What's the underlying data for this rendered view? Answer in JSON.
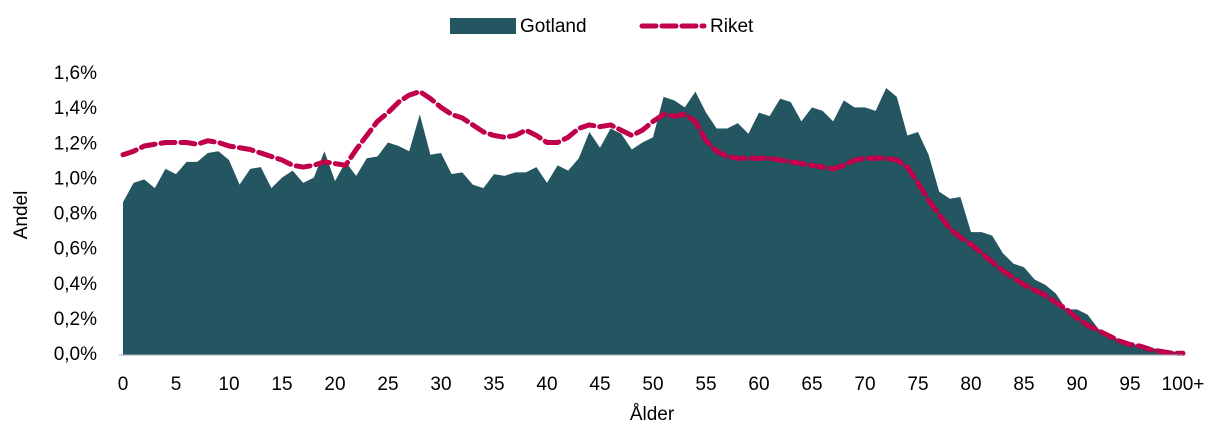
{
  "chart_data": {
    "type": "area_line",
    "x_label": "Ålder",
    "y_label": "Andel",
    "categories": [
      "0",
      null,
      null,
      null,
      null,
      "5",
      null,
      null,
      null,
      null,
      "10",
      null,
      null,
      null,
      null,
      "15",
      null,
      null,
      null,
      null,
      "20",
      null,
      null,
      null,
      null,
      "25",
      null,
      null,
      null,
      null,
      "30",
      null,
      null,
      null,
      null,
      "35",
      null,
      null,
      null,
      null,
      "40",
      null,
      null,
      null,
      null,
      "45",
      null,
      null,
      null,
      null,
      "50",
      null,
      null,
      null,
      null,
      "55",
      null,
      null,
      null,
      null,
      "60",
      null,
      null,
      null,
      null,
      "65",
      null,
      null,
      null,
      null,
      "70",
      null,
      null,
      null,
      null,
      "75",
      null,
      null,
      null,
      null,
      "80",
      null,
      null,
      null,
      null,
      "85",
      null,
      null,
      null,
      null,
      "90",
      null,
      null,
      null,
      null,
      "95",
      null,
      null,
      null,
      null,
      "100+"
    ],
    "series": [
      {
        "name": "Gotland",
        "color": "#235660",
        "style": "area",
        "values": [
          0.87,
          0.98,
          1.0,
          0.95,
          1.06,
          1.03,
          1.1,
          1.1,
          1.15,
          1.16,
          1.11,
          0.97,
          1.06,
          1.07,
          0.95,
          1.01,
          1.05,
          0.98,
          1.01,
          1.16,
          0.99,
          1.1,
          1.02,
          1.12,
          1.13,
          1.21,
          1.19,
          1.16,
          1.37,
          1.14,
          1.15,
          1.03,
          1.04,
          0.97,
          0.95,
          1.03,
          1.02,
          1.04,
          1.04,
          1.07,
          0.98,
          1.08,
          1.05,
          1.12,
          1.27,
          1.18,
          1.29,
          1.26,
          1.17,
          1.21,
          1.24,
          1.47,
          1.45,
          1.41,
          1.5,
          1.38,
          1.29,
          1.29,
          1.32,
          1.26,
          1.38,
          1.36,
          1.46,
          1.44,
          1.33,
          1.41,
          1.39,
          1.33,
          1.45,
          1.41,
          1.41,
          1.39,
          1.52,
          1.47,
          1.25,
          1.27,
          1.14,
          0.93,
          0.89,
          0.9,
          0.7,
          0.7,
          0.68,
          0.58,
          0.52,
          0.5,
          0.43,
          0.4,
          0.35,
          0.26,
          0.26,
          0.23,
          0.15,
          0.11,
          0.09,
          0.07,
          0.05,
          0.04,
          0.03,
          0.02,
          0.02
        ]
      },
      {
        "name": "Riket",
        "color": "#c0004a",
        "style": "dashed",
        "values": [
          1.14,
          1.16,
          1.19,
          1.2,
          1.21,
          1.21,
          1.21,
          1.2,
          1.22,
          1.21,
          1.19,
          1.18,
          1.17,
          1.15,
          1.13,
          1.11,
          1.08,
          1.07,
          1.08,
          1.1,
          1.09,
          1.08,
          1.17,
          1.25,
          1.33,
          1.38,
          1.44,
          1.48,
          1.5,
          1.46,
          1.41,
          1.37,
          1.35,
          1.31,
          1.27,
          1.25,
          1.24,
          1.25,
          1.28,
          1.25,
          1.21,
          1.21,
          1.24,
          1.29,
          1.31,
          1.3,
          1.31,
          1.28,
          1.25,
          1.28,
          1.33,
          1.37,
          1.36,
          1.37,
          1.33,
          1.22,
          1.16,
          1.13,
          1.12,
          1.12,
          1.12,
          1.12,
          1.11,
          1.1,
          1.09,
          1.08,
          1.07,
          1.06,
          1.08,
          1.11,
          1.12,
          1.12,
          1.12,
          1.11,
          1.07,
          0.98,
          0.88,
          0.8,
          0.72,
          0.67,
          0.63,
          0.58,
          0.53,
          0.48,
          0.44,
          0.4,
          0.37,
          0.34,
          0.3,
          0.26,
          0.21,
          0.17,
          0.14,
          0.11,
          0.08,
          0.06,
          0.05,
          0.03,
          0.02,
          0.01,
          0.01
        ]
      }
    ],
    "ylim": [
      0,
      1.6
    ],
    "yticks": [
      {
        "value": 0,
        "label": "0,0%"
      },
      {
        "value": 0.2,
        "label": "0,2%"
      },
      {
        "value": 0.4,
        "label": "0,4%"
      },
      {
        "value": 0.6,
        "label": "0,6%"
      },
      {
        "value": 0.8,
        "label": "0,8%"
      },
      {
        "value": 1.0,
        "label": "1,0%"
      },
      {
        "value": 1.2,
        "label": "1,2%"
      },
      {
        "value": 1.4,
        "label": "1,4%"
      },
      {
        "value": 1.6,
        "label": "1,6%"
      }
    ],
    "grid": false,
    "legend": "top"
  }
}
